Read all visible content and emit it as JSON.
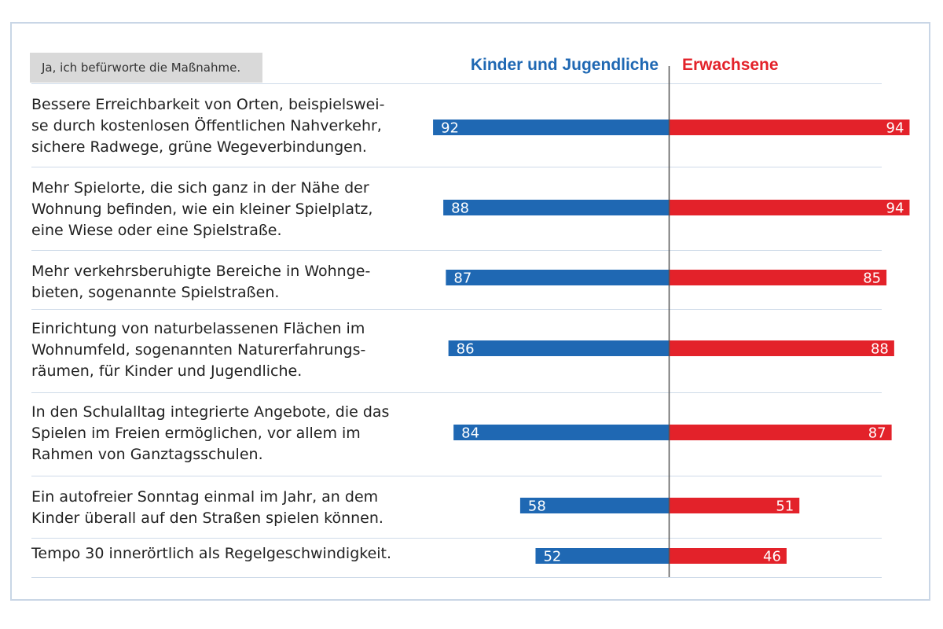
{
  "note": "Ja, ich befürworte die Maßnahme.",
  "colors": {
    "kids": "#1f68b3",
    "adults": "#e3222a",
    "separator": "#cfdbe9",
    "axis": "#555555"
  },
  "chart_data": {
    "type": "bar",
    "orientation": "horizontal-diverging",
    "categories": [
      "Bessere Erreichbarkeit von Orten, beispielswei-\nse durch kostenlosen Öffentlichen Nahverkehr,\nsichere Radwege, grüne Wegeverbindungen.",
      "Mehr Spielorte, die sich ganz in der Nähe der\nWohnung befinden, wie ein kleiner Spielplatz,\neine Wiese oder eine Spielstraße.",
      "Mehr verkehrsberuhigte Bereiche in Wohnge-\nbieten, sogenannte Spielstraßen.",
      "Einrichtung von naturbelassenen Flächen im\nWohnumfeld, sogenannten Naturerfahrungs-\nräumen, für Kinder und Jugendliche.",
      "In den Schulalltag integrierte Angebote, die das\nSpielen im Freien ermöglichen, vor allem im\nRahmen von Ganztagsschulen.",
      "Ein autofreier Sonntag einmal im Jahr, an dem\nKinder überall auf den Straßen spielen können.",
      "Tempo 30 innerörtlich als Regelgeschwindigkeit."
    ],
    "series": [
      {
        "name": "Kinder und Jugendliche",
        "values": [
          92,
          88,
          87,
          86,
          84,
          58,
          52
        ]
      },
      {
        "name": "Erwachsene",
        "values": [
          94,
          94,
          85,
          88,
          87,
          51,
          46
        ]
      }
    ],
    "xlim": [
      0,
      100
    ],
    "grid": false,
    "legend": "top"
  }
}
